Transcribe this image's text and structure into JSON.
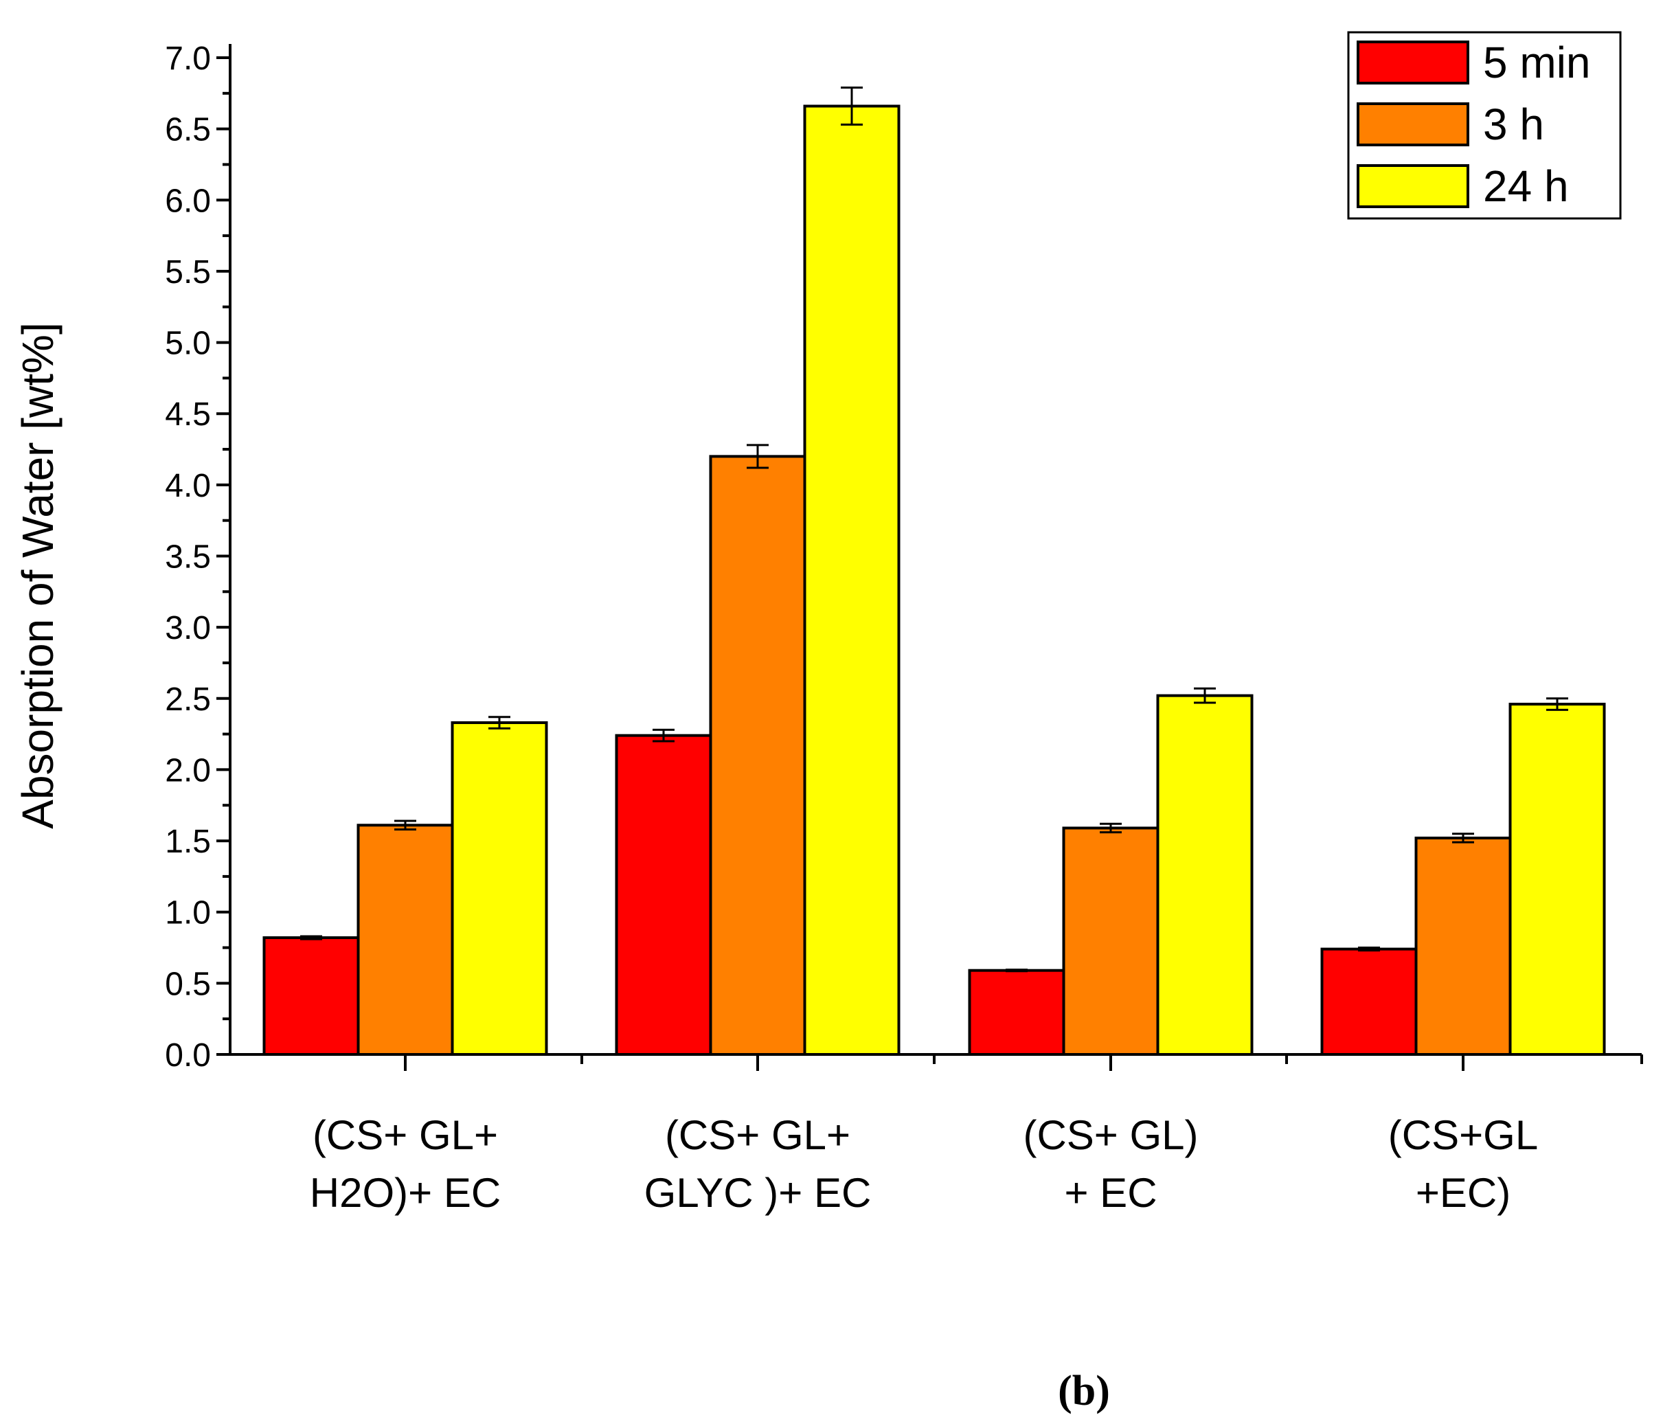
{
  "chart_data": {
    "type": "bar",
    "ylabel": "Absorption of Water [wt%]",
    "ylim": [
      0,
      7.0
    ],
    "ytick_values": [
      0.0,
      0.5,
      1.0,
      1.5,
      2.0,
      2.5,
      3.0,
      3.5,
      4.0,
      4.5,
      5.0,
      5.5,
      6.0,
      6.5,
      7.0
    ],
    "ytick_labels": [
      "0.0",
      "0.5",
      "1.0",
      "1.5",
      "2.0",
      "2.5",
      "3.0",
      "3.5",
      "4.0",
      "4.5",
      "5.0",
      "5.5",
      "6.0",
      "6.5",
      "7.0"
    ],
    "categories": [
      [
        "(CS+ GL+",
        "H2O)+ EC"
      ],
      [
        "(CS+ GL+",
        "GLYC )+ EC"
      ],
      [
        "(CS+ GL)",
        "+ EC"
      ],
      [
        "(CS+GL",
        "+EC)"
      ]
    ],
    "series": [
      {
        "name": "5 min",
        "color": "#ff0000",
        "values": [
          0.82,
          2.24,
          0.59,
          0.74
        ],
        "errors": [
          0.01,
          0.04,
          0.005,
          0.01
        ]
      },
      {
        "name": "3 h",
        "color": "#ff8000",
        "values": [
          1.61,
          4.2,
          1.59,
          1.52
        ],
        "errors": [
          0.03,
          0.08,
          0.03,
          0.03
        ]
      },
      {
        "name": "24 h",
        "color": "#ffff00",
        "values": [
          2.33,
          6.66,
          2.52,
          2.46
        ],
        "errors": [
          0.04,
          0.13,
          0.05,
          0.04
        ]
      }
    ],
    "legend_position": "top-right",
    "panel_label": "(b)"
  }
}
